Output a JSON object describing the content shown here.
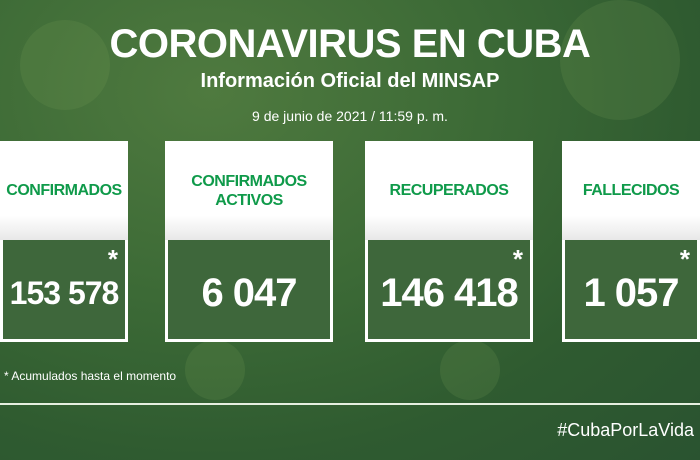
{
  "header": {
    "title": "CORONAVIRUS EN CUBA",
    "subtitle": "Información Oficial del MINSAP",
    "date": "9 de junio de 2021 / 11:59 p. m."
  },
  "cards": [
    {
      "label": "CONFIRMADOS",
      "value": "153 578",
      "marker": "*"
    },
    {
      "label": "CONFIRMADOS ACTIVOS",
      "value": "6 047",
      "marker": ""
    },
    {
      "label": "RECUPERADOS",
      "value": "146 418",
      "marker": "*"
    },
    {
      "label": "FALLECIDOS",
      "value": "1 057",
      "marker": "*"
    }
  ],
  "footnote": "* Acumulados hasta el momento",
  "hashtag": "#CubaPorLaVida",
  "colors": {
    "label_green": "#0f9a4a",
    "background": "#3c6a36"
  }
}
